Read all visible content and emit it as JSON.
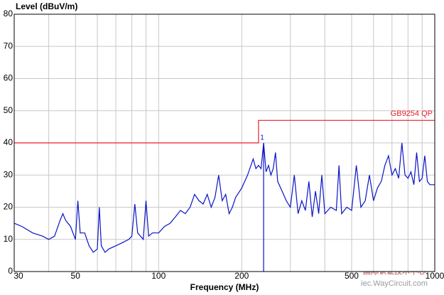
{
  "chart_data": {
    "type": "line",
    "y_label": "Level (dBuV/m)",
    "x_label": "Frequency (MHz)",
    "xscale": "log",
    "grid": true,
    "xlim": [
      30,
      1000
    ],
    "ylim": [
      0,
      80
    ],
    "xticks": [
      30,
      50,
      100,
      200,
      500,
      1000
    ],
    "xgrid_minor": [
      40,
      60,
      70,
      80,
      90,
      300,
      400,
      600,
      700,
      800,
      900
    ],
    "yticks": [
      0,
      10,
      20,
      30,
      40,
      50,
      60,
      70,
      80
    ],
    "series": [
      {
        "name": "GB9254 QP",
        "color": "#e8202a",
        "x": [
          30,
          230,
          230,
          1000
        ],
        "values": [
          40,
          40,
          47,
          47
        ]
      },
      {
        "name": "Level",
        "color": "#0a14c8",
        "x": [
          30,
          32,
          35,
          38,
          40,
          42,
          44,
          45,
          46,
          48,
          50,
          51,
          52,
          54,
          56,
          58,
          60,
          61,
          62,
          64,
          66,
          70,
          74,
          78,
          80,
          82,
          84,
          88,
          90,
          92,
          95,
          100,
          105,
          110,
          115,
          120,
          125,
          130,
          135,
          140,
          145,
          150,
          155,
          160,
          165,
          170,
          175,
          180,
          185,
          190,
          200,
          210,
          220,
          225,
          230,
          235,
          240,
          245,
          250,
          255,
          260,
          265,
          270,
          280,
          290,
          300,
          310,
          320,
          330,
          340,
          350,
          360,
          370,
          380,
          390,
          400,
          420,
          440,
          450,
          460,
          480,
          500,
          520,
          540,
          560,
          580,
          600,
          620,
          640,
          660,
          680,
          700,
          720,
          740,
          760,
          780,
          800,
          820,
          840,
          860,
          880,
          900,
          920,
          940,
          960,
          1000
        ],
        "values": [
          15,
          14,
          12,
          11,
          10,
          11,
          16,
          18,
          16,
          14,
          10,
          22,
          12,
          12,
          8,
          6,
          7,
          20,
          8,
          6,
          7,
          8,
          9,
          10,
          11,
          21,
          12,
          10,
          22,
          11,
          12,
          12,
          14,
          15,
          17,
          19,
          18,
          20,
          24,
          22,
          21,
          24,
          20,
          23,
          30,
          22,
          24,
          18,
          20,
          23,
          26,
          30,
          35,
          32,
          33,
          32,
          40,
          31,
          33,
          30,
          32,
          37,
          28,
          25,
          22,
          20,
          30,
          18,
          22,
          19,
          28,
          17,
          25,
          18,
          30,
          18,
          20,
          19,
          33,
          18,
          20,
          19,
          33,
          20,
          22,
          30,
          22,
          26,
          28,
          33,
          36,
          30,
          32,
          29,
          40,
          30,
          29,
          31,
          27,
          37,
          28,
          29,
          36,
          28,
          27,
          27
        ]
      }
    ],
    "marker": {
      "label": "1",
      "x": 240,
      "value": 40
    },
    "watermark": [
      "国际认证技术中心",
      "iec.WayCircuit.com"
    ]
  }
}
